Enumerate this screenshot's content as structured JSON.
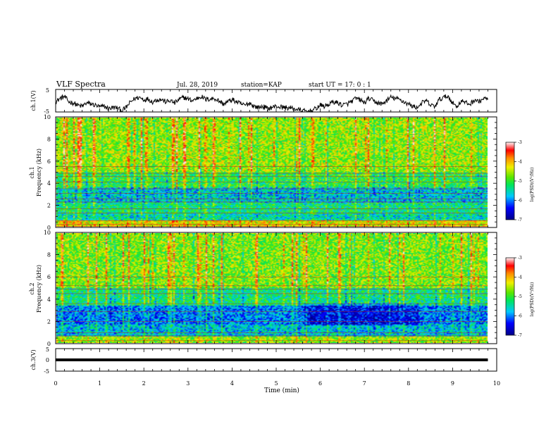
{
  "header": {
    "title": "VLF Spectra",
    "date": "Jul. 28, 2019",
    "station": "station=KAP",
    "start": "start UT = 17: 0 : 1"
  },
  "chart_data": [
    {
      "type": "line",
      "panel": "ch1-waveform",
      "ylabel": "ch.1(V)",
      "ylim": [
        -5,
        5
      ],
      "yticks": [
        "5",
        "-5"
      ],
      "xlim": [
        0,
        10
      ],
      "data_end": 9.8,
      "points": [
        [
          0,
          -0.5
        ],
        [
          0.1,
          1.0
        ],
        [
          0.2,
          1.8
        ],
        [
          0.3,
          -0.5
        ],
        [
          0.4,
          -1.0
        ],
        [
          0.5,
          -2.0
        ],
        [
          0.6,
          -2.5
        ],
        [
          0.7,
          -1.0
        ],
        [
          0.8,
          -1.5
        ],
        [
          0.9,
          -2.0
        ],
        [
          1.0,
          -2.8
        ],
        [
          1.1,
          -2.5
        ],
        [
          1.2,
          -3.5
        ],
        [
          1.3,
          -3.0
        ],
        [
          1.4,
          -3.2
        ],
        [
          1.5,
          -4.5
        ],
        [
          1.6,
          -3.0
        ],
        [
          1.7,
          -0.5
        ],
        [
          1.8,
          1.0
        ],
        [
          1.9,
          1.5
        ],
        [
          2.0,
          0.5
        ],
        [
          2.1,
          0.8
        ],
        [
          2.2,
          -0.5
        ],
        [
          2.3,
          0.5
        ],
        [
          2.4,
          0.5
        ],
        [
          2.5,
          -0.5
        ],
        [
          2.6,
          0.0
        ],
        [
          2.7,
          -1.0
        ],
        [
          2.8,
          0.5
        ],
        [
          2.9,
          1.5
        ],
        [
          3.0,
          0.8
        ],
        [
          3.1,
          0.0
        ],
        [
          3.2,
          1.0
        ],
        [
          3.3,
          2.0
        ],
        [
          3.4,
          0.5
        ],
        [
          3.5,
          0.8
        ],
        [
          3.6,
          1.0
        ],
        [
          3.7,
          0.0
        ],
        [
          3.8,
          -1.5
        ],
        [
          3.9,
          -0.5
        ],
        [
          4.0,
          0.5
        ],
        [
          4.1,
          -0.5
        ],
        [
          4.2,
          -1.5
        ],
        [
          4.3,
          -2.0
        ],
        [
          4.4,
          -1.0
        ],
        [
          4.5,
          -2.5
        ],
        [
          4.6,
          -3.0
        ],
        [
          4.7,
          -2.5
        ],
        [
          4.8,
          -3.5
        ],
        [
          4.9,
          -3.0
        ],
        [
          5.0,
          -2.5
        ],
        [
          5.1,
          -2.8
        ],
        [
          5.2,
          -3.0
        ],
        [
          5.3,
          -3.2
        ],
        [
          5.4,
          -3.5
        ],
        [
          5.5,
          -4.0
        ],
        [
          5.6,
          -4.5
        ],
        [
          5.7,
          -4.8
        ],
        [
          5.8,
          -4.5
        ],
        [
          5.9,
          -3.5
        ],
        [
          6.0,
          -2.0
        ],
        [
          6.1,
          -2.5
        ],
        [
          6.2,
          -1.5
        ],
        [
          6.3,
          -0.5
        ],
        [
          6.4,
          -1.0
        ],
        [
          6.5,
          -2.0
        ],
        [
          6.6,
          -1.5
        ],
        [
          6.7,
          -0.5
        ],
        [
          6.8,
          1.0
        ],
        [
          6.9,
          0.5
        ],
        [
          7.0,
          -1.0
        ],
        [
          7.1,
          1.0
        ],
        [
          7.2,
          0.0
        ],
        [
          7.3,
          -1.0
        ],
        [
          7.4,
          -1.5
        ],
        [
          7.5,
          0.0
        ],
        [
          7.6,
          1.5
        ],
        [
          7.7,
          1.0
        ],
        [
          7.8,
          0.5
        ],
        [
          7.9,
          -0.5
        ],
        [
          8.0,
          -1.5
        ],
        [
          8.1,
          -2.5
        ],
        [
          8.2,
          -3.0
        ],
        [
          8.3,
          -1.0
        ],
        [
          8.4,
          0.0
        ],
        [
          8.5,
          -2.0
        ],
        [
          8.6,
          -2.5
        ],
        [
          8.7,
          0.5
        ],
        [
          8.8,
          1.5
        ],
        [
          8.9,
          2.0
        ],
        [
          9.0,
          -1.0
        ],
        [
          9.1,
          -2.5
        ],
        [
          9.2,
          0.0
        ],
        [
          9.3,
          -1.0
        ],
        [
          9.4,
          -1.5
        ],
        [
          9.5,
          0.5
        ],
        [
          9.6,
          -0.5
        ],
        [
          9.7,
          1.0
        ],
        [
          9.8,
          0.5
        ]
      ]
    },
    {
      "type": "heatmap",
      "panel": "ch1-spectrogram",
      "ylabel_line1": "ch.1",
      "ylabel_line2": "Frequency (kHz)",
      "ylim": [
        0,
        10
      ],
      "xlim": [
        0,
        10
      ],
      "data_end": 9.8,
      "yticks": [
        "0",
        "2",
        "4",
        "6",
        "8",
        "10"
      ],
      "colorbar": {
        "label": "log(PSD)(V²/Hz)",
        "range": [
          -7,
          -3
        ],
        "ticks": [
          "-3",
          "-4",
          "-5",
          "-6",
          "-7"
        ]
      },
      "horizontal_lines_khz": [
        0.1,
        0.3,
        0.6,
        1.3,
        1.7,
        2.3,
        2.6,
        3.1,
        3.5,
        4.1,
        4.6,
        4.9,
        5.5
      ],
      "description_levels_by_band": [
        {
          "freq_khz": [
            0,
            0.6
          ],
          "log_psd": -4.3
        },
        {
          "freq_khz": [
            0.6,
            1.2
          ],
          "log_psd": -5.5
        },
        {
          "freq_khz": [
            1.2,
            2.2
          ],
          "log_psd": -5.3
        },
        {
          "freq_khz": [
            2.2,
            3.6
          ],
          "log_psd": -5.7
        },
        {
          "freq_khz": [
            3.6,
            5.0
          ],
          "log_psd": -5.1
        },
        {
          "freq_khz": [
            5.0,
            10.0
          ],
          "log_psd": -4.6
        }
      ]
    },
    {
      "type": "heatmap",
      "panel": "ch2-spectrogram",
      "ylabel_line1": "ch.2",
      "ylabel_line2": "Frequency (kHz)",
      "ylim": [
        0,
        10
      ],
      "xlim": [
        0,
        10
      ],
      "data_end": 9.8,
      "yticks": [
        "0",
        "2",
        "4",
        "6",
        "8",
        "10"
      ],
      "colorbar": {
        "label": "log(PSD)(V²/Hz)",
        "range": [
          -7,
          -3
        ],
        "ticks": [
          "-3",
          "-4",
          "-5",
          "-6",
          "-7"
        ]
      },
      "horizontal_lines_khz": [
        0.3,
        0.7,
        1.0,
        2.0,
        2.9,
        3.6,
        4.5,
        4.9,
        5.2,
        6.0
      ],
      "description_levels_by_band": [
        {
          "freq_khz": [
            0,
            0.6
          ],
          "log_psd": -4.6
        },
        {
          "freq_khz": [
            0.6,
            1.7
          ],
          "log_psd": -5.7
        },
        {
          "freq_khz": [
            1.7,
            3.4
          ],
          "log_psd": -6.0
        },
        {
          "freq_khz": [
            3.4,
            5.0
          ],
          "log_psd": -5.3
        },
        {
          "freq_khz": [
            5.0,
            10.0
          ],
          "log_psd": -4.7
        }
      ]
    },
    {
      "type": "line",
      "panel": "ch3-waveform",
      "ylabel": "ch.3(V)",
      "ylim": [
        -5,
        5
      ],
      "yticks": [
        "5",
        "0",
        "-5"
      ],
      "xlim": [
        0,
        10
      ],
      "xlabel": "Time (min)",
      "xticks": [
        "0",
        "1",
        "2",
        "3",
        "4",
        "5",
        "6",
        "7",
        "8",
        "9",
        "10"
      ],
      "data_end": 9.8,
      "points": [
        [
          0,
          0
        ],
        [
          9.8,
          0
        ]
      ]
    }
  ]
}
